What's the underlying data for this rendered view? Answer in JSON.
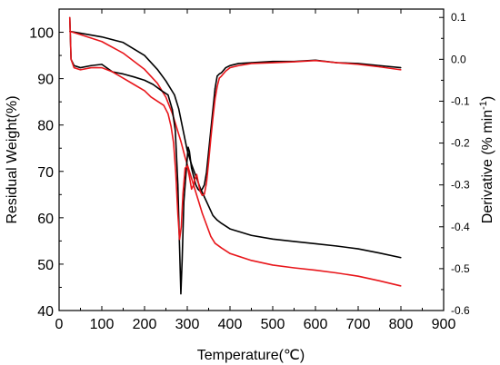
{
  "chart_data": {
    "type": "line",
    "xlabel": "Temperature(℃)",
    "ylabel_left": "Residual Weight(%)",
    "ylabel_right_prefix": "Derivative (% min",
    "ylabel_right_sup": "-1",
    "ylabel_right_suffix": ")",
    "xlim": [
      0,
      900
    ],
    "ylim_left": [
      40,
      105
    ],
    "ylim_right": [
      -0.6,
      0.12
    ],
    "x_ticks": [
      0,
      100,
      200,
      300,
      400,
      500,
      600,
      700,
      800,
      900
    ],
    "y_ticks_left": [
      40,
      50,
      60,
      70,
      80,
      90,
      100
    ],
    "y_ticks_right": [
      -0.6,
      -0.5,
      -0.4,
      -0.3,
      -0.2,
      -0.1,
      0.0,
      0.1
    ],
    "y_tick_labels_right": [
      "-0.6",
      "-0.5",
      "-0.4",
      "-0.3",
      "-0.2",
      "-0.1",
      "0.0",
      "0.1"
    ],
    "colors": {
      "black": "#000000",
      "red": "#e8161b"
    },
    "series": [
      {
        "color": "black",
        "axis": "left",
        "x": [
          25,
          50,
          100,
          150,
          200,
          230,
          250,
          270,
          280,
          290,
          300,
          310,
          320,
          330,
          340,
          350,
          360,
          370,
          380,
          400,
          450,
          500,
          550,
          600,
          650,
          700,
          750,
          800
        ],
        "y": [
          100.2,
          99.8,
          99.0,
          97.8,
          95.0,
          92.0,
          89.5,
          86.5,
          83.5,
          79.0,
          74.5,
          71.5,
          69.0,
          66.5,
          64.5,
          62.5,
          60.5,
          59.5,
          58.8,
          57.6,
          56.2,
          55.4,
          54.9,
          54.4,
          53.9,
          53.3,
          52.4,
          51.4
        ]
      },
      {
        "color": "red",
        "axis": "left",
        "x": [
          25,
          50,
          100,
          150,
          200,
          230,
          250,
          265,
          275,
          285,
          295,
          305,
          315,
          325,
          335,
          345,
          355,
          365,
          380,
          400,
          450,
          500,
          550,
          600,
          650,
          700,
          750,
          800
        ],
        "y": [
          100.2,
          99.5,
          98.0,
          95.5,
          92.0,
          89.0,
          86.0,
          82.5,
          79.5,
          76.5,
          73.0,
          70.0,
          67.0,
          64.0,
          61.0,
          58.5,
          56.0,
          54.5,
          53.5,
          52.3,
          50.8,
          49.8,
          49.2,
          48.7,
          48.1,
          47.4,
          46.4,
          45.3
        ]
      },
      {
        "color": "black",
        "axis": "right",
        "x": [
          25,
          28,
          35,
          50,
          75,
          100,
          125,
          150,
          175,
          200,
          220,
          240,
          255,
          265,
          272,
          278,
          282,
          285,
          288,
          292,
          298,
          302,
          305,
          310,
          315,
          320,
          325,
          330,
          335,
          340,
          345,
          350,
          355,
          360,
          365,
          370,
          375,
          380,
          390,
          400,
          420,
          450,
          500,
          550,
          600,
          650,
          700,
          750,
          800
        ],
        "y": [
          0.1,
          0.0,
          -0.015,
          -0.02,
          -0.015,
          -0.012,
          -0.03,
          -0.035,
          -0.042,
          -0.05,
          -0.06,
          -0.075,
          -0.085,
          -0.12,
          -0.17,
          -0.3,
          -0.45,
          -0.56,
          -0.48,
          -0.34,
          -0.26,
          -0.21,
          -0.22,
          -0.26,
          -0.28,
          -0.3,
          -0.31,
          -0.315,
          -0.31,
          -0.3,
          -0.27,
          -0.22,
          -0.17,
          -0.12,
          -0.07,
          -0.04,
          -0.035,
          -0.032,
          -0.02,
          -0.015,
          -0.01,
          -0.008,
          -0.005,
          -0.005,
          -0.002,
          -0.008,
          -0.01,
          -0.015,
          -0.02
        ]
      },
      {
        "color": "red",
        "axis": "right",
        "x": [
          25,
          28,
          35,
          50,
          75,
          100,
          125,
          150,
          175,
          200,
          215,
          230,
          245,
          255,
          262,
          268,
          273,
          278,
          282,
          286,
          290,
          295,
          300,
          305,
          310,
          315,
          318,
          322,
          325,
          330,
          335,
          340,
          345,
          350,
          355,
          360,
          365,
          370,
          375,
          380,
          390,
          400,
          420,
          450,
          500,
          550,
          600,
          650,
          700,
          750,
          800
        ],
        "y": [
          0.1,
          0.0,
          -0.02,
          -0.025,
          -0.02,
          -0.02,
          -0.03,
          -0.045,
          -0.06,
          -0.075,
          -0.09,
          -0.1,
          -0.11,
          -0.13,
          -0.16,
          -0.2,
          -0.27,
          -0.37,
          -0.43,
          -0.4,
          -0.32,
          -0.26,
          -0.255,
          -0.28,
          -0.31,
          -0.3,
          -0.285,
          -0.275,
          -0.29,
          -0.315,
          -0.325,
          -0.322,
          -0.295,
          -0.245,
          -0.19,
          -0.14,
          -0.095,
          -0.065,
          -0.045,
          -0.04,
          -0.028,
          -0.02,
          -0.015,
          -0.01,
          -0.008,
          -0.006,
          -0.003,
          -0.008,
          -0.012,
          -0.018,
          -0.025
        ]
      }
    ]
  }
}
